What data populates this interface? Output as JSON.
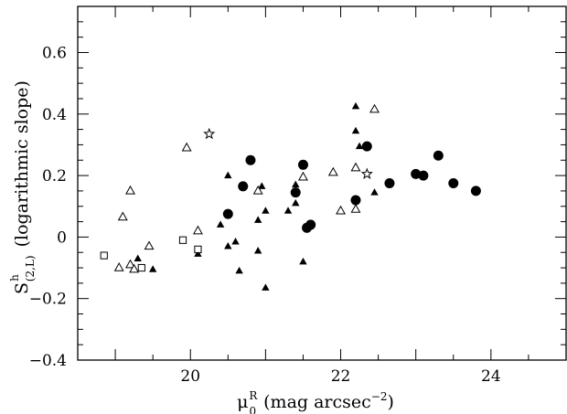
{
  "chart_data": {
    "type": "scatter",
    "xlabel": "μ",
    "xlabel_sub": "0",
    "xlabel_sup": "R",
    "xlabel_rest": " (mag arcsec",
    "xlabel_exp": "−2",
    "xlabel_close": ")",
    "ylabel": "S",
    "ylabel_sup": "h",
    "ylabel_sub": "(2,L)",
    "ylabel_rest": " (logarithmic slope)",
    "xlim": [
      18.5,
      25.0
    ],
    "ylim": [
      -0.4,
      0.75
    ],
    "x_ticks": [
      20,
      22,
      24
    ],
    "x_tick_labels": [
      "20",
      "22",
      "24"
    ],
    "y_ticks": [
      -0.4,
      -0.2,
      0,
      0.2,
      0.4,
      0.6
    ],
    "y_tick_labels": [
      "−0.4",
      "−0.2",
      "0",
      "0.2",
      "0.4",
      "0.6"
    ],
    "grid": false,
    "series": [
      {
        "marker": "filled-triangle",
        "points": [
          [
            19.3,
            -0.07
          ],
          [
            19.5,
            -0.105
          ],
          [
            20.1,
            -0.055
          ],
          [
            20.4,
            0.04
          ],
          [
            20.5,
            0.2
          ],
          [
            20.5,
            -0.03
          ],
          [
            20.6,
            -0.015
          ],
          [
            20.65,
            -0.11
          ],
          [
            20.9,
            0.055
          ],
          [
            20.9,
            -0.045
          ],
          [
            20.95,
            0.165
          ],
          [
            21.0,
            0.085
          ],
          [
            21.0,
            -0.165
          ],
          [
            21.3,
            0.085
          ],
          [
            21.4,
            0.11
          ],
          [
            21.5,
            -0.08
          ],
          [
            21.4,
            0.17
          ],
          [
            22.2,
            0.425
          ],
          [
            22.2,
            0.345
          ],
          [
            22.25,
            0.295
          ],
          [
            22.45,
            0.145
          ]
        ]
      },
      {
        "marker": "open-triangle",
        "points": [
          [
            19.05,
            -0.1
          ],
          [
            19.1,
            0.065
          ],
          [
            19.2,
            0.15
          ],
          [
            19.2,
            -0.09
          ],
          [
            19.25,
            -0.105
          ],
          [
            19.45,
            -0.03
          ],
          [
            19.95,
            0.29
          ],
          [
            20.1,
            0.02
          ],
          [
            20.9,
            0.15
          ],
          [
            21.5,
            0.195
          ],
          [
            21.9,
            0.21
          ],
          [
            22.0,
            0.085
          ],
          [
            22.2,
            0.225
          ],
          [
            22.2,
            0.09
          ],
          [
            22.45,
            0.415
          ]
        ]
      },
      {
        "marker": "open-square",
        "points": [
          [
            18.85,
            -0.06
          ],
          [
            19.35,
            -0.1
          ],
          [
            19.9,
            -0.01
          ],
          [
            20.1,
            -0.04
          ]
        ]
      },
      {
        "marker": "filled-circle",
        "points": [
          [
            20.5,
            0.075
          ],
          [
            20.7,
            0.165
          ],
          [
            20.8,
            0.25
          ],
          [
            21.4,
            0.145
          ],
          [
            21.5,
            0.235
          ],
          [
            21.55,
            0.03
          ],
          [
            21.6,
            0.04
          ],
          [
            22.2,
            0.12
          ],
          [
            22.35,
            0.295
          ],
          [
            22.65,
            0.175
          ],
          [
            23.0,
            0.205
          ],
          [
            23.1,
            0.2
          ],
          [
            23.3,
            0.265
          ],
          [
            23.5,
            0.175
          ],
          [
            23.8,
            0.15
          ]
        ]
      },
      {
        "marker": "open-star",
        "points": [
          [
            20.25,
            0.335
          ],
          [
            22.35,
            0.205
          ]
        ]
      }
    ]
  }
}
